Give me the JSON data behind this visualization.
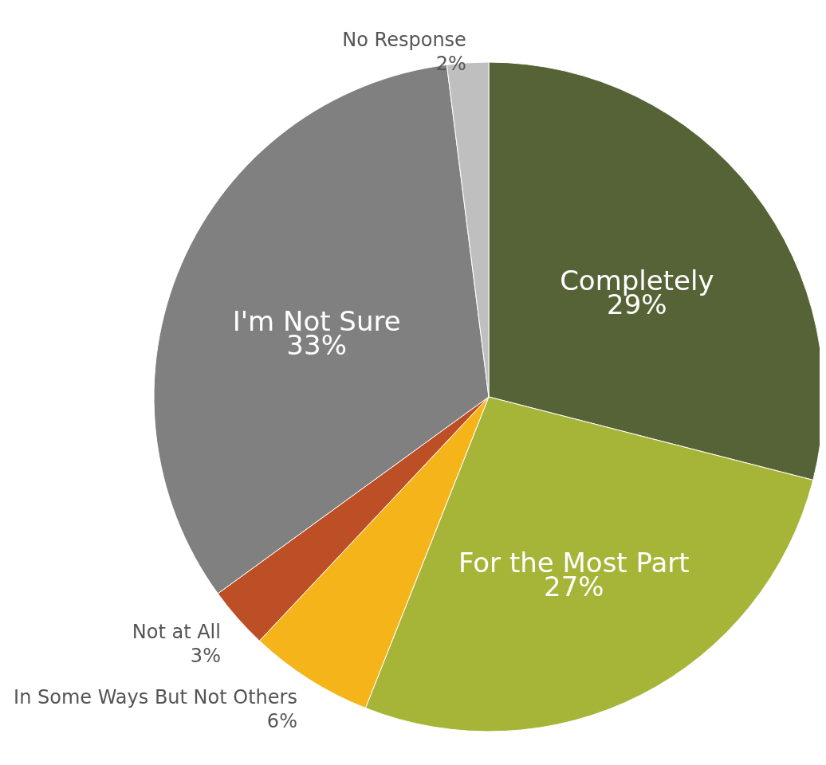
{
  "chart_data": {
    "type": "pie",
    "categories": [
      "Completely",
      "For the Most Part",
      "In Some Ways But Not Others",
      "Not at All",
      "I'm Not Sure",
      "No Response"
    ],
    "values": [
      29,
      27,
      6,
      3,
      33,
      2
    ],
    "value_labels": [
      "29%",
      "27%",
      "6%",
      "3%",
      "33%",
      "2%"
    ],
    "colors": [
      "#566337",
      "#a6b538",
      "#f5b51a",
      "#bd4f26",
      "#808080",
      "#bfbfbf"
    ]
  }
}
